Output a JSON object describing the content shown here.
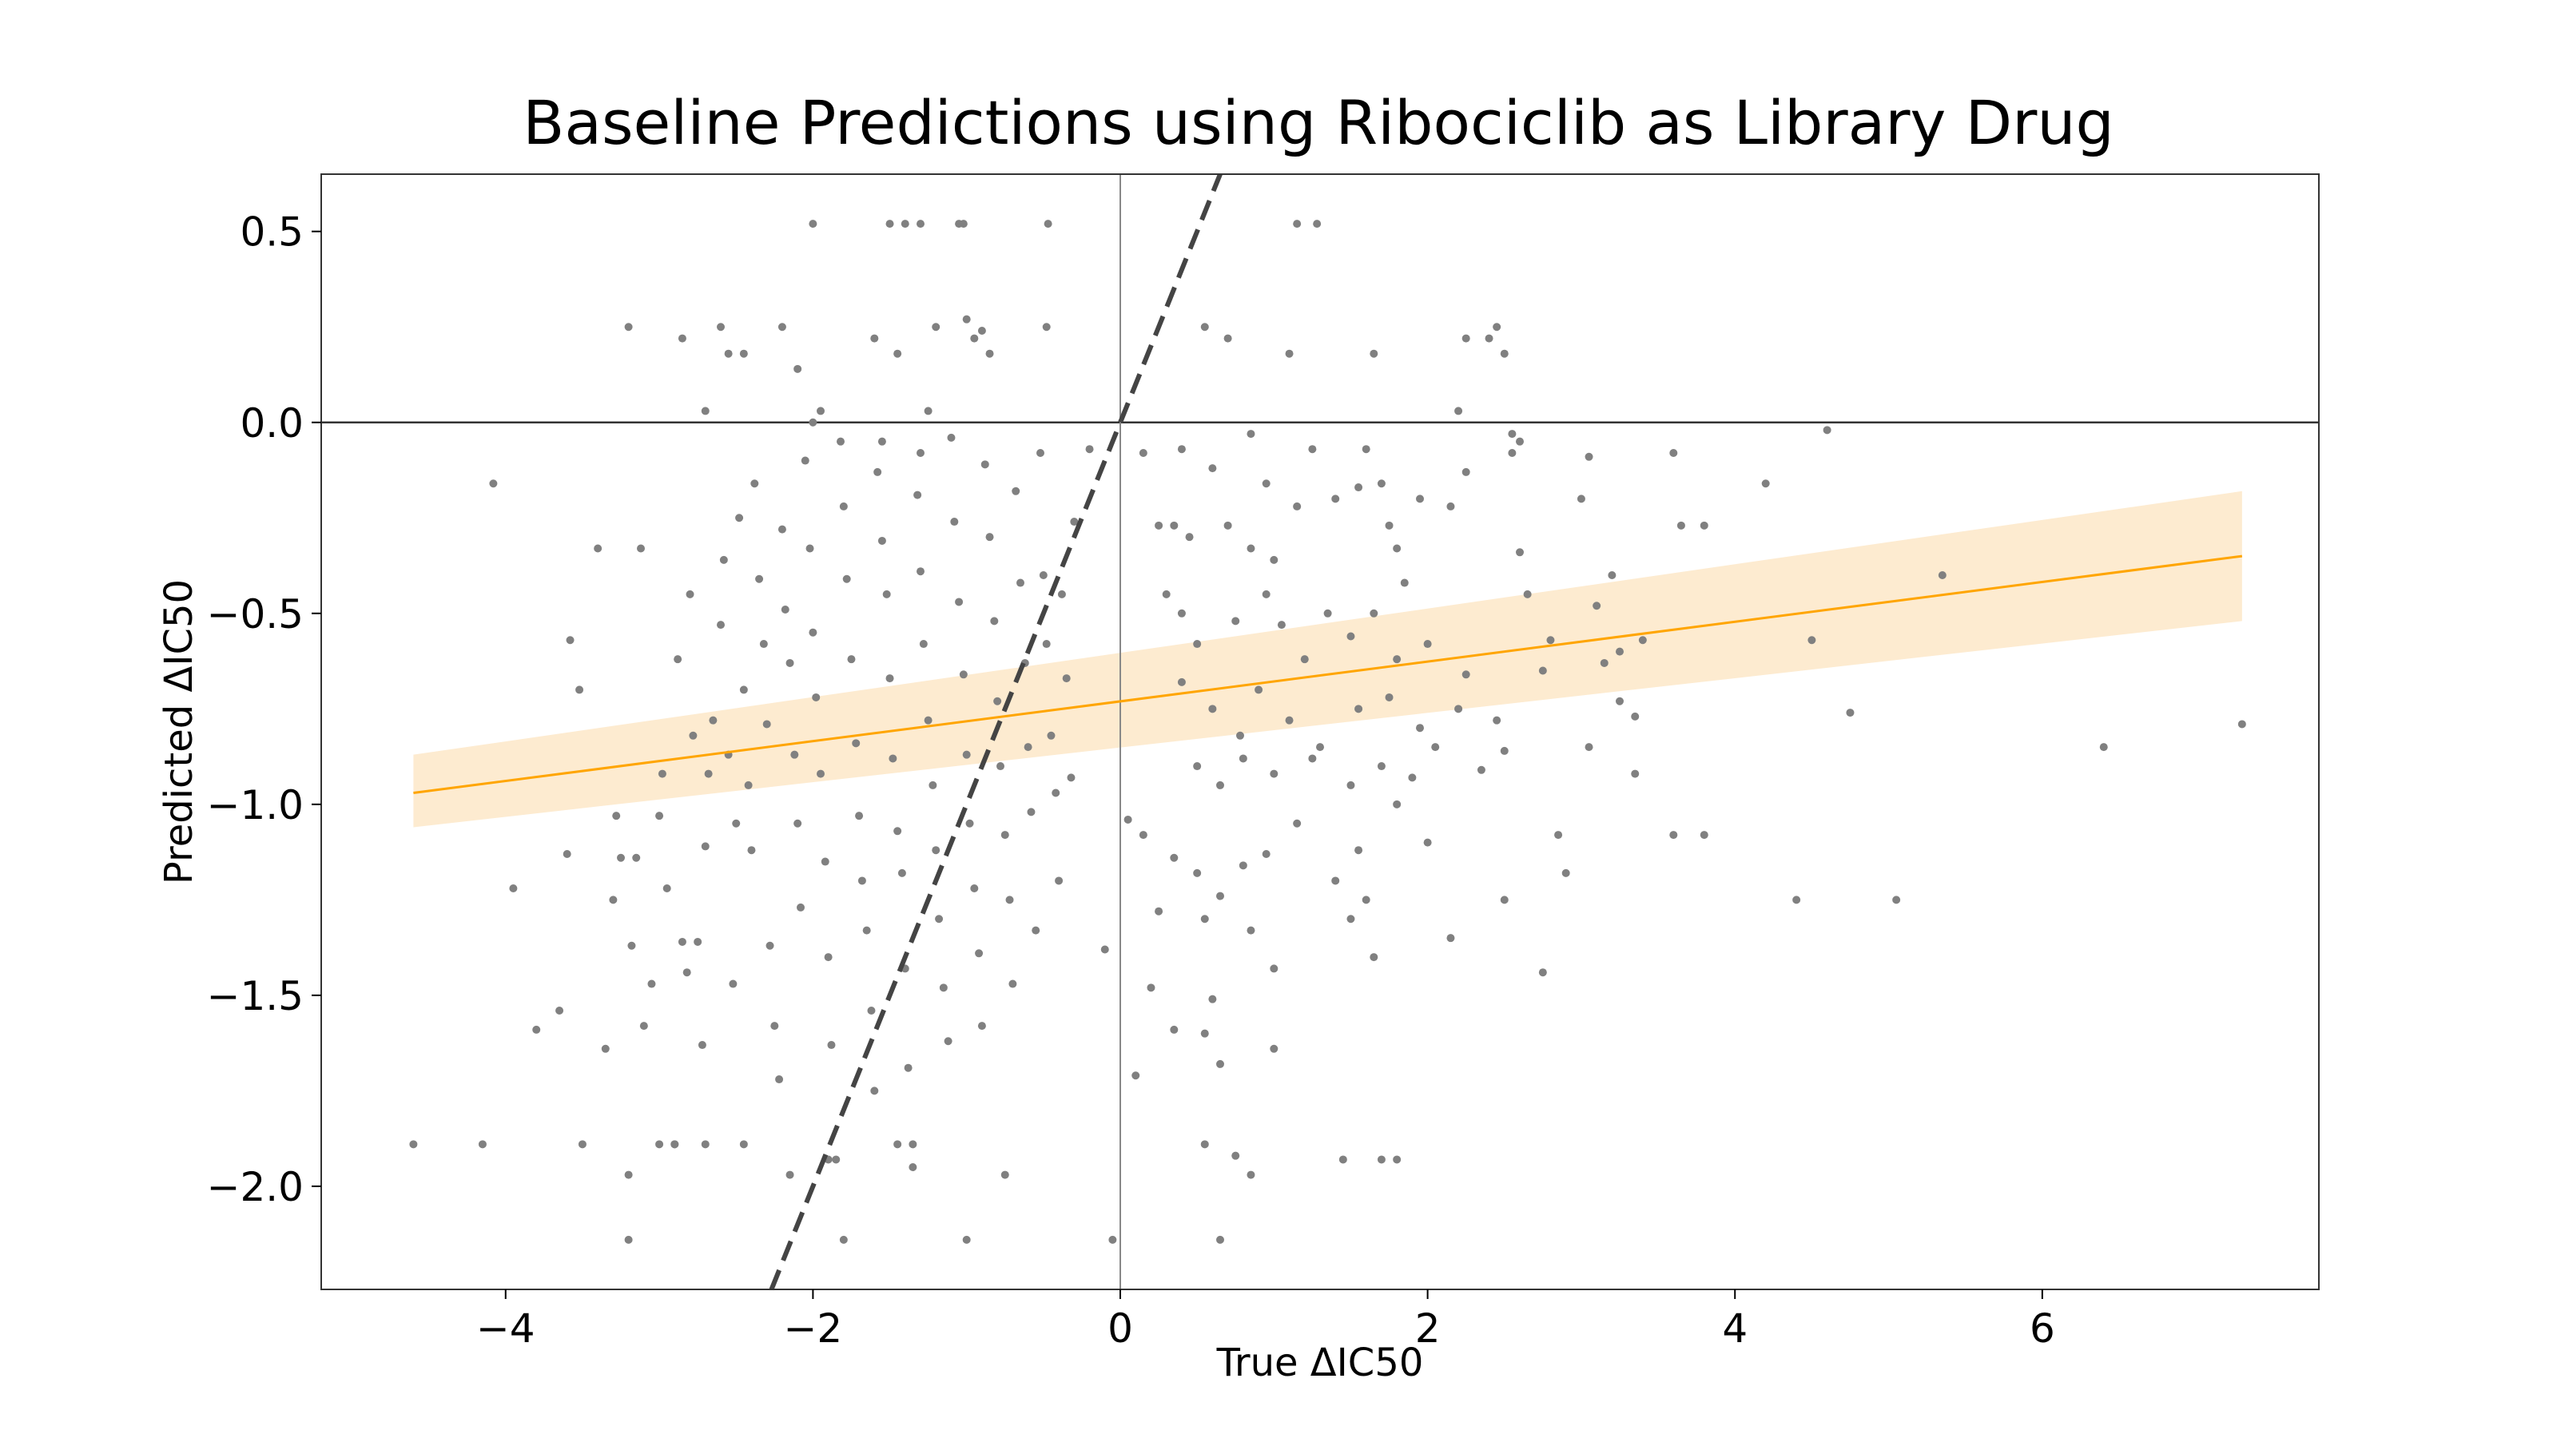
{
  "chart_data": {
    "type": "scatter",
    "title": "Baseline Predictions using Ribociclib as Library Drug",
    "xlabel": "True ΔIC50",
    "ylabel": "Predicted ΔIC50",
    "xlim": [
      -5.2,
      7.8
    ],
    "ylim": [
      -2.27,
      0.65
    ],
    "xticks": [
      -4,
      -2,
      0,
      2,
      4,
      6
    ],
    "xtick_labels": [
      "−4",
      "−2",
      "0",
      "2",
      "4",
      "6"
    ],
    "yticks": [
      0.5,
      0.0,
      -0.5,
      -1.0,
      -1.5,
      -2.0
    ],
    "ytick_labels": [
      "0.5",
      "0.0",
      "−0.5",
      "−1.0",
      "−1.5",
      "−2.0"
    ],
    "grid": false,
    "reference_lines": {
      "horizontal_y": 0,
      "vertical_x": 0
    },
    "identity_line": {
      "slope": 1,
      "intercept": 0,
      "style": "dashed",
      "color": "#444444"
    },
    "regression": {
      "x_range": [
        -4.6,
        7.3
      ],
      "y_start": -0.97,
      "y_end": -0.35,
      "ci_start": [
        -1.06,
        -0.87
      ],
      "ci_end": [
        -0.52,
        -0.18
      ],
      "color": "#ffa500",
      "band_color": "#fdebd0"
    },
    "point_color": "#808080",
    "points": [
      [
        -4.6,
        -1.89
      ],
      [
        -4.15,
        -1.89
      ],
      [
        -4.08,
        -0.16
      ],
      [
        -3.95,
        -1.22
      ],
      [
        -3.8,
        -1.59
      ],
      [
        -3.65,
        -1.54
      ],
      [
        -3.6,
        -1.13
      ],
      [
        -3.58,
        -0.57
      ],
      [
        -3.52,
        -0.7
      ],
      [
        -3.5,
        -1.89
      ],
      [
        -3.4,
        -0.33
      ],
      [
        -3.35,
        -1.64
      ],
      [
        -3.3,
        -1.25
      ],
      [
        -3.28,
        -1.03
      ],
      [
        -3.25,
        -1.14
      ],
      [
        -3.2,
        -1.97
      ],
      [
        -3.18,
        -1.37
      ],
      [
        -3.15,
        -1.14
      ],
      [
        -3.12,
        -0.33
      ],
      [
        -3.1,
        -1.58
      ],
      [
        -3.05,
        -1.47
      ],
      [
        -3.0,
        -1.03
      ],
      [
        -2.98,
        -0.92
      ],
      [
        -2.95,
        -1.22
      ],
      [
        -2.9,
        -1.89
      ],
      [
        -2.88,
        -0.62
      ],
      [
        -2.85,
        -1.36
      ],
      [
        -2.82,
        -1.44
      ],
      [
        -2.8,
        -0.45
      ],
      [
        -2.78,
        -0.82
      ],
      [
        -2.75,
        -1.36
      ],
      [
        -2.72,
        -1.63
      ],
      [
        -2.7,
        -1.11
      ],
      [
        -2.68,
        -0.92
      ],
      [
        -2.65,
        -0.78
      ],
      [
        -2.6,
        -0.53
      ],
      [
        -2.58,
        -0.36
      ],
      [
        -2.55,
        -0.87
      ],
      [
        -2.52,
        -1.47
      ],
      [
        -2.5,
        -1.05
      ],
      [
        -2.48,
        -0.25
      ],
      [
        -2.45,
        -0.7
      ],
      [
        -2.42,
        -0.95
      ],
      [
        -2.4,
        -1.12
      ],
      [
        -2.38,
        -0.16
      ],
      [
        -2.35,
        -0.41
      ],
      [
        -2.32,
        -0.58
      ],
      [
        -2.3,
        -0.79
      ],
      [
        -2.28,
        -1.37
      ],
      [
        -2.25,
        -1.58
      ],
      [
        -2.22,
        -1.72
      ],
      [
        -2.2,
        -0.28
      ],
      [
        -2.18,
        -0.49
      ],
      [
        -2.15,
        -0.63
      ],
      [
        -2.12,
        -0.87
      ],
      [
        -2.1,
        -1.05
      ],
      [
        -2.08,
        -1.27
      ],
      [
        -2.05,
        -0.1
      ],
      [
        -2.02,
        -0.33
      ],
      [
        -2.0,
        -0.55
      ],
      [
        -1.98,
        -0.72
      ],
      [
        -1.95,
        -0.92
      ],
      [
        -1.92,
        -1.15
      ],
      [
        -1.9,
        -1.4
      ],
      [
        -1.88,
        -1.63
      ],
      [
        -1.85,
        -1.93
      ],
      [
        -1.82,
        -0.05
      ],
      [
        -1.8,
        -0.22
      ],
      [
        -1.78,
        -0.41
      ],
      [
        -1.75,
        -0.62
      ],
      [
        -1.72,
        -0.84
      ],
      [
        -1.7,
        -1.03
      ],
      [
        -1.68,
        -1.2
      ],
      [
        -1.65,
        -1.33
      ],
      [
        -1.62,
        -1.54
      ],
      [
        -1.6,
        -1.75
      ],
      [
        -1.58,
        -0.13
      ],
      [
        -1.55,
        -0.31
      ],
      [
        -1.52,
        -0.45
      ],
      [
        -1.5,
        -0.67
      ],
      [
        -1.48,
        -0.88
      ],
      [
        -1.45,
        -1.07
      ],
      [
        -1.42,
        -1.18
      ],
      [
        -1.4,
        -1.43
      ],
      [
        -1.38,
        -1.69
      ],
      [
        -1.35,
        -1.95
      ],
      [
        -1.32,
        -0.19
      ],
      [
        -1.3,
        -0.39
      ],
      [
        -1.28,
        -0.58
      ],
      [
        -1.25,
        -0.78
      ],
      [
        -1.22,
        -0.95
      ],
      [
        -1.2,
        -1.12
      ],
      [
        -1.18,
        -1.3
      ],
      [
        -1.15,
        -1.48
      ],
      [
        -1.12,
        -1.62
      ],
      [
        -1.1,
        -0.04
      ],
      [
        -1.08,
        -0.26
      ],
      [
        -1.05,
        -0.47
      ],
      [
        -1.02,
        -0.66
      ],
      [
        -1.0,
        -0.87
      ],
      [
        -0.98,
        -1.05
      ],
      [
        -0.95,
        -1.22
      ],
      [
        -0.92,
        -1.39
      ],
      [
        -0.9,
        -1.58
      ],
      [
        -0.88,
        -0.11
      ],
      [
        -0.85,
        -0.3
      ],
      [
        -0.82,
        -0.52
      ],
      [
        -0.8,
        -0.73
      ],
      [
        -0.78,
        -0.9
      ],
      [
        -0.75,
        -1.08
      ],
      [
        -0.72,
        -1.25
      ],
      [
        -0.7,
        -1.47
      ],
      [
        -0.68,
        -0.18
      ],
      [
        -0.65,
        -0.42
      ],
      [
        -0.62,
        -0.63
      ],
      [
        -0.6,
        -0.85
      ],
      [
        -0.58,
        -1.02
      ],
      [
        -0.55,
        -1.33
      ],
      [
        -0.52,
        -0.08
      ],
      [
        -0.5,
        -0.4
      ],
      [
        -0.48,
        -0.58
      ],
      [
        -0.45,
        -0.82
      ],
      [
        -0.42,
        -0.97
      ],
      [
        -0.4,
        -1.2
      ],
      [
        -0.38,
        -0.45
      ],
      [
        -0.35,
        -0.67
      ],
      [
        -0.32,
        -0.93
      ],
      [
        -0.3,
        -0.26
      ],
      [
        -0.2,
        -0.07
      ],
      [
        -0.05,
        -2.14
      ],
      [
        -2.0,
        0.52
      ],
      [
        -1.5,
        0.52
      ],
      [
        -1.4,
        0.52
      ],
      [
        -1.3,
        0.52
      ],
      [
        -1.05,
        0.52
      ],
      [
        -1.02,
        0.52
      ],
      [
        -0.47,
        0.52
      ],
      [
        1.15,
        0.52
      ],
      [
        1.28,
        0.52
      ],
      [
        -3.2,
        0.25
      ],
      [
        -2.85,
        0.22
      ],
      [
        -2.6,
        0.25
      ],
      [
        -2.55,
        0.18
      ],
      [
        -2.45,
        0.18
      ],
      [
        -2.2,
        0.25
      ],
      [
        -2.1,
        0.14
      ],
      [
        -1.95,
        0.03
      ],
      [
        -1.6,
        0.22
      ],
      [
        -1.45,
        0.18
      ],
      [
        -1.2,
        0.25
      ],
      [
        -1.0,
        0.27
      ],
      [
        -0.95,
        0.22
      ],
      [
        -0.9,
        0.24
      ],
      [
        -0.85,
        0.18
      ],
      [
        -0.48,
        0.25
      ],
      [
        -1.25,
        0.03
      ],
      [
        -2.7,
        0.03
      ],
      [
        -2.0,
        0.0
      ],
      [
        -1.55,
        -0.05
      ],
      [
        -1.3,
        -0.08
      ],
      [
        0.55,
        0.25
      ],
      [
        0.7,
        0.22
      ],
      [
        1.1,
        0.18
      ],
      [
        1.65,
        0.18
      ],
      [
        2.25,
        0.22
      ],
      [
        2.4,
        0.22
      ],
      [
        2.45,
        0.25
      ],
      [
        2.5,
        0.18
      ],
      [
        2.2,
        0.03
      ],
      [
        2.55,
        -0.03
      ],
      [
        2.6,
        -0.05
      ],
      [
        4.6,
        -0.02
      ],
      [
        0.15,
        -0.08
      ],
      [
        0.4,
        -0.07
      ],
      [
        0.6,
        -0.12
      ],
      [
        0.85,
        -0.03
      ],
      [
        0.95,
        -0.16
      ],
      [
        1.25,
        -0.07
      ],
      [
        1.6,
        -0.07
      ],
      [
        1.7,
        -0.16
      ],
      [
        1.95,
        -0.2
      ],
      [
        2.15,
        -0.22
      ],
      [
        2.25,
        -0.13
      ],
      [
        2.55,
        -0.08
      ],
      [
        3.05,
        -0.09
      ],
      [
        3.6,
        -0.08
      ],
      [
        4.2,
        -0.16
      ],
      [
        3.0,
        -0.2
      ],
      [
        3.65,
        -0.27
      ],
      [
        3.8,
        -0.27
      ],
      [
        0.25,
        -0.27
      ],
      [
        0.35,
        -0.27
      ],
      [
        0.45,
        -0.3
      ],
      [
        0.7,
        -0.27
      ],
      [
        0.85,
        -0.33
      ],
      [
        1.0,
        -0.36
      ],
      [
        1.15,
        -0.22
      ],
      [
        1.4,
        -0.2
      ],
      [
        1.55,
        -0.17
      ],
      [
        1.75,
        -0.27
      ],
      [
        1.8,
        -0.33
      ],
      [
        1.85,
        -0.42
      ],
      [
        2.6,
        -0.34
      ],
      [
        2.65,
        -0.45
      ],
      [
        3.2,
        -0.4
      ],
      [
        5.35,
        -0.4
      ],
      [
        0.3,
        -0.45
      ],
      [
        0.4,
        -0.5
      ],
      [
        0.5,
        -0.58
      ],
      [
        0.75,
        -0.52
      ],
      [
        0.95,
        -0.45
      ],
      [
        1.05,
        -0.53
      ],
      [
        1.2,
        -0.62
      ],
      [
        1.35,
        -0.5
      ],
      [
        1.5,
        -0.56
      ],
      [
        1.65,
        -0.5
      ],
      [
        1.8,
        -0.62
      ],
      [
        2.0,
        -0.58
      ],
      [
        2.25,
        -0.66
      ],
      [
        2.8,
        -0.57
      ],
      [
        3.1,
        -0.48
      ],
      [
        3.25,
        -0.6
      ],
      [
        3.4,
        -0.57
      ],
      [
        4.5,
        -0.57
      ],
      [
        0.4,
        -0.68
      ],
      [
        0.6,
        -0.75
      ],
      [
        0.78,
        -0.82
      ],
      [
        0.9,
        -0.7
      ],
      [
        1.1,
        -0.78
      ],
      [
        1.3,
        -0.85
      ],
      [
        1.55,
        -0.75
      ],
      [
        1.75,
        -0.72
      ],
      [
        1.95,
        -0.8
      ],
      [
        2.2,
        -0.75
      ],
      [
        2.45,
        -0.78
      ],
      [
        2.75,
        -0.65
      ],
      [
        3.15,
        -0.63
      ],
      [
        3.25,
        -0.73
      ],
      [
        3.35,
        -0.77
      ],
      [
        4.75,
        -0.76
      ],
      [
        0.5,
        -0.9
      ],
      [
        0.65,
        -0.95
      ],
      [
        0.8,
        -0.88
      ],
      [
        1.0,
        -0.92
      ],
      [
        1.25,
        -0.88
      ],
      [
        1.5,
        -0.95
      ],
      [
        1.7,
        -0.9
      ],
      [
        1.9,
        -0.93
      ],
      [
        2.05,
        -0.85
      ],
      [
        2.35,
        -0.91
      ],
      [
        2.5,
        -0.86
      ],
      [
        3.05,
        -0.85
      ],
      [
        3.35,
        -0.92
      ],
      [
        6.4,
        -0.85
      ],
      [
        7.3,
        -0.79
      ],
      [
        0.05,
        -1.04
      ],
      [
        0.15,
        -1.08
      ],
      [
        0.35,
        -1.14
      ],
      [
        0.5,
        -1.18
      ],
      [
        0.65,
        -1.24
      ],
      [
        0.8,
        -1.16
      ],
      [
        0.95,
        -1.13
      ],
      [
        1.15,
        -1.05
      ],
      [
        1.4,
        -1.2
      ],
      [
        1.55,
        -1.12
      ],
      [
        1.6,
        -1.25
      ],
      [
        1.8,
        -1.0
      ],
      [
        2.0,
        -1.1
      ],
      [
        2.85,
        -1.08
      ],
      [
        2.9,
        -1.18
      ],
      [
        3.6,
        -1.08
      ],
      [
        3.8,
        -1.08
      ],
      [
        0.25,
        -1.28
      ],
      [
        0.55,
        -1.3
      ],
      [
        0.85,
        -1.33
      ],
      [
        1.5,
        -1.3
      ],
      [
        1.65,
        -1.4
      ],
      [
        2.15,
        -1.35
      ],
      [
        2.5,
        -1.25
      ],
      [
        4.4,
        -1.25
      ],
      [
        5.05,
        -1.25
      ],
      [
        -0.1,
        -1.38
      ],
      [
        0.2,
        -1.48
      ],
      [
        0.6,
        -1.51
      ],
      [
        1.0,
        -1.43
      ],
      [
        2.75,
        -1.44
      ],
      [
        0.35,
        -1.59
      ],
      [
        0.55,
        -1.6
      ],
      [
        0.65,
        -1.68
      ],
      [
        1.0,
        -1.64
      ],
      [
        0.1,
        -1.71
      ],
      [
        0.55,
        -1.89
      ],
      [
        0.75,
        -1.92
      ],
      [
        1.45,
        -1.93
      ],
      [
        1.7,
        -1.93
      ],
      [
        1.8,
        -1.93
      ],
      [
        0.85,
        -1.97
      ],
      [
        0.65,
        -2.14
      ],
      [
        -1.8,
        -2.14
      ],
      [
        -3.2,
        -2.14
      ],
      [
        -1.0,
        -2.14
      ],
      [
        -0.75,
        -1.97
      ],
      [
        -1.35,
        -1.89
      ],
      [
        -1.45,
        -1.89
      ],
      [
        -1.9,
        -1.93
      ],
      [
        -2.15,
        -1.97
      ],
      [
        -2.7,
        -1.89
      ],
      [
        -2.9,
        -1.89
      ],
      [
        -3.0,
        -1.89
      ],
      [
        -2.45,
        -1.89
      ]
    ]
  }
}
